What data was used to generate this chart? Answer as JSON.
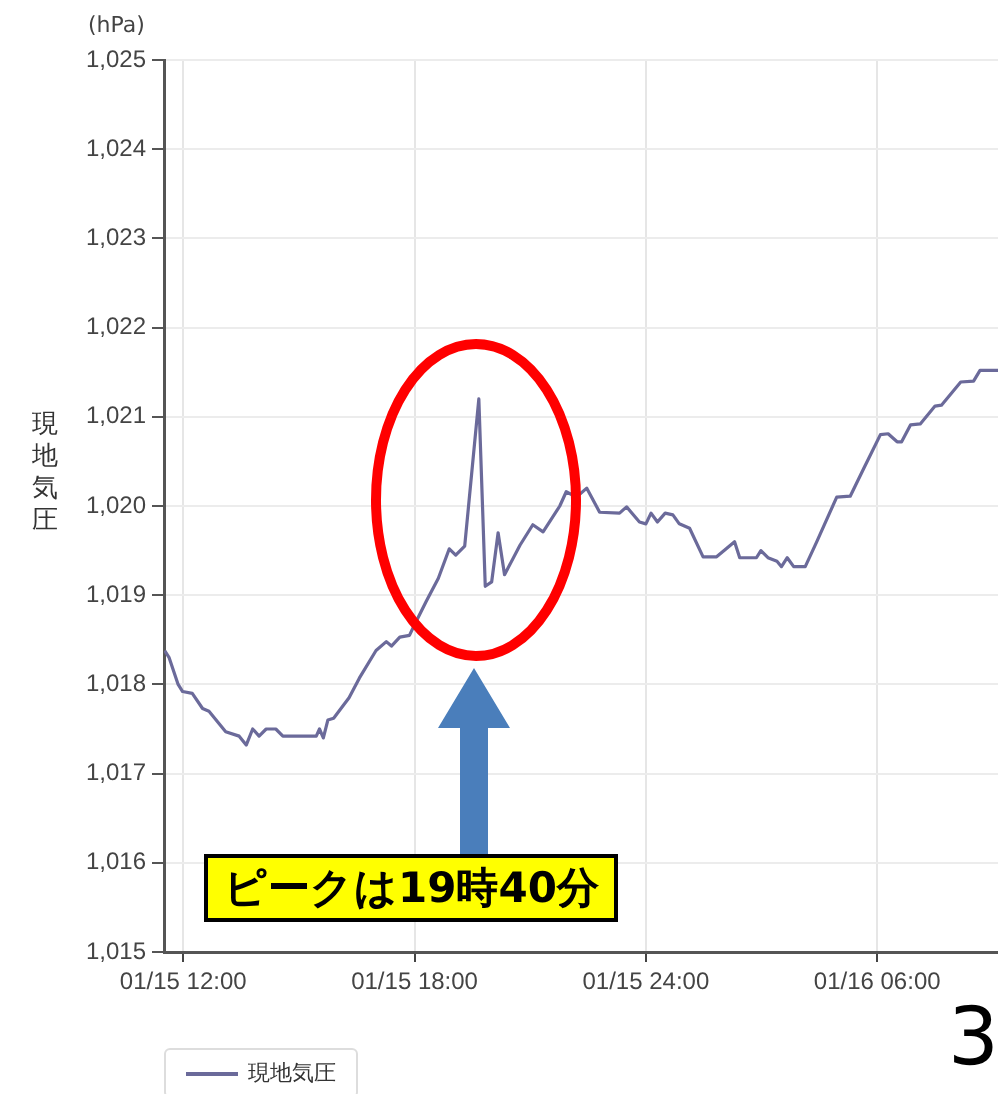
{
  "chart_data": {
    "type": "line",
    "ylabel": "現地気圧",
    "annotations": [
      "(hPa)",
      "ピークは19時40分",
      "3"
    ],
    "xlim": [
      "--01-15T11:30",
      "--01-16T09:08"
    ],
    "xticks": [
      {
        "value": "--01-15T12:00",
        "label": "01/15 12:00"
      },
      {
        "value": "--01-15T18:00",
        "label": "01/15 18:00"
      },
      {
        "value": "--01-16T00:00",
        "label": "01/15 24:00"
      },
      {
        "value": "--01-16T06:00",
        "label": "01/16 06:00"
      }
    ],
    "ylim": [
      1015,
      1025
    ],
    "yticks": [
      {
        "value": 1015,
        "label": "1,015"
      },
      {
        "value": 1016,
        "label": "1,016"
      },
      {
        "value": 1017,
        "label": "1,017"
      },
      {
        "value": 1018,
        "label": "1,018"
      },
      {
        "value": 1019,
        "label": "1,019"
      },
      {
        "value": 1020,
        "label": "1,020"
      },
      {
        "value": 1021,
        "label": "1,021"
      },
      {
        "value": 1022,
        "label": "1,022"
      },
      {
        "value": 1023,
        "label": "1,023"
      },
      {
        "value": 1024,
        "label": "1,024"
      },
      {
        "value": 1025,
        "label": "1,025"
      }
    ],
    "grid": true,
    "legend": "bottom left",
    "marker": "none",
    "line_style": "solid",
    "series": [
      {
        "name": "現地気圧",
        "color": "#6b6a9a",
        "x": [
          "--01-15T11:31",
          "--01-15T11:38",
          "--01-15T11:52",
          "--01-15T11:59",
          "--01-15T12:14",
          "--01-15T12:30",
          "--01-15T12:40",
          "--01-15T13:06",
          "--01-15T13:27",
          "--01-15T13:38",
          "--01-15T13:48",
          "--01-15T13:58",
          "--01-15T14:09",
          "--01-15T14:24",
          "--01-15T14:35",
          "--01-15T15:27",
          "--01-15T15:32",
          "--01-15T15:38",
          "--01-15T15:45",
          "--01-15T15:54",
          "--01-15T16:18",
          "--01-15T16:34",
          "--01-15T17:00",
          "--01-15T17:16",
          "--01-15T17:24",
          "--01-15T17:37",
          "--01-15T17:52",
          "--01-15T18:02",
          "--01-15T18:18",
          "--01-15T18:37",
          "--01-15T18:54",
          "--01-15T19:04",
          "--01-15T19:18",
          "--01-15T19:40",
          "--01-15T19:50",
          "--01-15T20:00",
          "--01-15T20:10",
          "--01-15T20:20",
          "--01-15T20:44",
          "--01-15T21:04",
          "--01-15T21:20",
          "--01-15T21:46",
          "--01-15T21:56",
          "--01-15T22:12",
          "--01-15T22:28",
          "--01-15T22:48",
          "--01-15T23:19",
          "--01-15T23:30",
          "--01-15T23:50",
          "--01-16T00:00",
          "--01-16T00:08",
          "--01-16T00:18",
          "--01-16T00:30",
          "--01-16T00:42",
          "--01-16T00:52",
          "--01-16T01:08",
          "--01-16T01:29",
          "--01-16T01:50",
          "--01-16T02:05",
          "--01-16T02:18",
          "--01-16T02:26",
          "--01-16T02:52",
          "--01-16T02:59",
          "--01-16T03:10",
          "--01-16T03:24",
          "--01-16T03:31",
          "--01-16T03:40",
          "--01-16T03:50",
          "--01-16T04:08",
          "--01-16T04:26",
          "--01-16T04:57",
          "--01-16T05:18",
          "--01-16T05:39",
          "--01-16T06:05",
          "--01-16T06:17",
          "--01-16T06:31",
          "--01-16T06:38",
          "--01-16T06:52",
          "--01-16T07:07",
          "--01-16T07:30",
          "--01-16T07:40",
          "--01-16T08:10",
          "--01-16T08:30",
          "--01-16T08:40",
          "--01-16T09:08"
        ],
        "values": [
          1018.38,
          1018.3,
          1018.0,
          1017.92,
          1017.9,
          1017.73,
          1017.7,
          1017.47,
          1017.42,
          1017.32,
          1017.5,
          1017.42,
          1017.5,
          1017.5,
          1017.42,
          1017.42,
          1017.5,
          1017.4,
          1017.6,
          1017.62,
          1017.85,
          1018.07,
          1018.38,
          1018.48,
          1018.43,
          1018.53,
          1018.55,
          1018.7,
          1018.93,
          1019.19,
          1019.52,
          1019.45,
          1019.55,
          1021.2,
          1019.1,
          1019.15,
          1019.7,
          1019.23,
          1019.56,
          1019.79,
          1019.71,
          1020.0,
          1020.16,
          1020.1,
          1020.2,
          1019.93,
          1019.92,
          1019.99,
          1019.82,
          1019.8,
          1019.92,
          1019.82,
          1019.92,
          1019.9,
          1019.8,
          1019.75,
          1019.43,
          1019.43,
          1019.52,
          1019.6,
          1019.42,
          1019.42,
          1019.5,
          1019.42,
          1019.38,
          1019.32,
          1019.42,
          1019.32,
          1019.32,
          1019.6,
          1020.1,
          1020.11,
          1020.42,
          1020.8,
          1020.81,
          1020.72,
          1020.72,
          1020.91,
          1020.92,
          1021.12,
          1021.13,
          1021.39,
          1021.4,
          1021.52,
          1021.52
        ]
      }
    ]
  }
}
